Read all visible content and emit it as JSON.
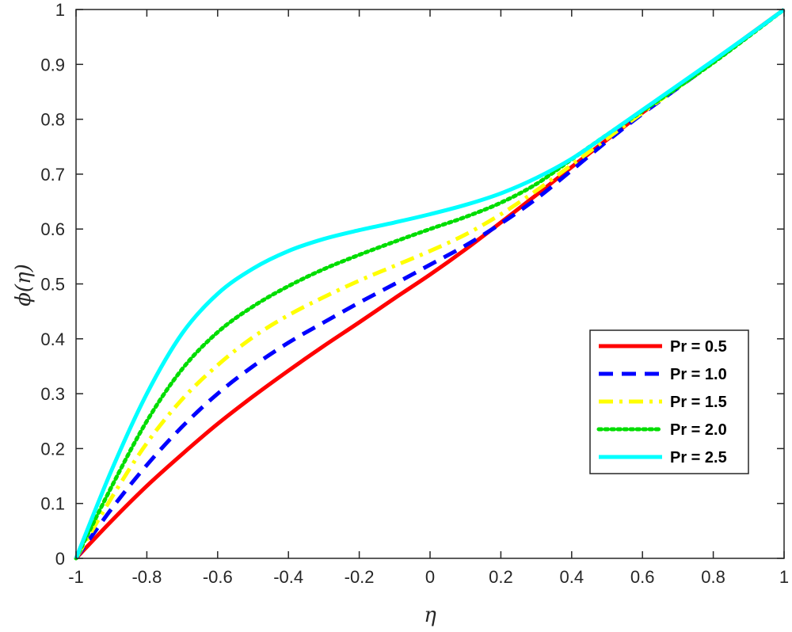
{
  "chart_data": {
    "type": "line",
    "xlabel": "η",
    "ylabel": "ϕ(η)",
    "xlim": [
      -1,
      1
    ],
    "ylim": [
      0,
      1
    ],
    "xticks": [
      "-1",
      "-0.8",
      "-0.6",
      "-0.4",
      "-0.2",
      "0",
      "0.2",
      "0.4",
      "0.6",
      "0.8",
      "1"
    ],
    "yticks": [
      "0",
      "0.1",
      "0.2",
      "0.3",
      "0.4",
      "0.5",
      "0.6",
      "0.7",
      "0.8",
      "0.9",
      "1"
    ],
    "grid": false,
    "legend_position": "right",
    "x": [
      -1.0,
      -0.9,
      -0.8,
      -0.7,
      -0.6,
      -0.5,
      -0.4,
      -0.3,
      -0.2,
      -0.1,
      0.0,
      0.1,
      0.2,
      0.3,
      0.4,
      0.5,
      0.6,
      0.7,
      0.8,
      0.9,
      1.0
    ],
    "series": [
      {
        "name": "Pr = 0.5",
        "color": "#ff0000",
        "dash": "solid",
        "values": [
          0.0,
          0.068,
          0.132,
          0.19,
          0.245,
          0.295,
          0.342,
          0.387,
          0.43,
          0.474,
          0.517,
          0.563,
          0.612,
          0.662,
          0.713,
          0.763,
          0.812,
          0.86,
          0.906,
          0.953,
          1.0
        ]
      },
      {
        "name": "Pr = 1.0",
        "color": "#0000ff",
        "dash": "dashed",
        "values": [
          0.0,
          0.09,
          0.17,
          0.24,
          0.3,
          0.35,
          0.393,
          0.43,
          0.466,
          0.5,
          0.535,
          0.57,
          0.61,
          0.655,
          0.707,
          0.76,
          0.81,
          0.857,
          0.904,
          0.952,
          1.0
        ]
      },
      {
        "name": "Pr = 1.5",
        "color": "#ffff00",
        "dash": "dashdot",
        "values": [
          0.0,
          0.11,
          0.21,
          0.29,
          0.352,
          0.403,
          0.443,
          0.476,
          0.506,
          0.533,
          0.56,
          0.59,
          0.627,
          0.67,
          0.717,
          0.765,
          0.812,
          0.858,
          0.904,
          0.952,
          1.0
        ]
      },
      {
        "name": "Pr = 2.0",
        "color": "#00dd00",
        "dash": "dotted",
        "values": [
          0.0,
          0.13,
          0.25,
          0.345,
          0.412,
          0.459,
          0.496,
          0.527,
          0.553,
          0.577,
          0.6,
          0.622,
          0.648,
          0.682,
          0.727,
          0.772,
          0.815,
          0.858,
          0.903,
          0.951,
          1.0
        ]
      },
      {
        "name": "Pr = 2.5",
        "color": "#00ffff",
        "dash": "solid",
        "values": [
          0.0,
          0.16,
          0.3,
          0.41,
          0.482,
          0.528,
          0.56,
          0.582,
          0.598,
          0.612,
          0.627,
          0.644,
          0.665,
          0.693,
          0.728,
          0.772,
          0.817,
          0.862,
          0.907,
          0.953,
          1.0
        ]
      }
    ]
  }
}
